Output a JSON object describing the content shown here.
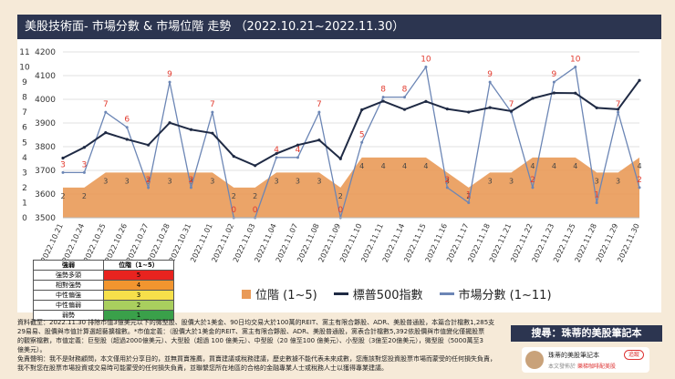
{
  "title": "美股技術面- 市場分數 & 市場位階 走勢 （2022.10.21~2022.11.30）",
  "chart_data": {
    "type": "line",
    "categories": [
      "2022.10.21",
      "2022.10.24",
      "2022.10.25",
      "2022.10.26",
      "2022.10.27",
      "2022.10.28",
      "2022.10.31",
      "2022.11.01",
      "2022.11.02",
      "2022.11.03",
      "2022.11.04",
      "2022.11.07",
      "2022.11.08",
      "2022.11.09",
      "2022.11.10",
      "2022.11.11",
      "2022.11.14",
      "2022.11.15",
      "2022.11.16",
      "2022.11.17",
      "2022.11.18",
      "2022.11.21",
      "2022.11.22",
      "2022.11.23",
      "2022.11.25",
      "2022.11.28",
      "2022.11.29",
      "2022.11.30"
    ],
    "left_axis": {
      "ticks": [
        3500,
        3600,
        3700,
        3800,
        3900,
        4000,
        4100,
        4200
      ],
      "ylim": [
        3500,
        4200
      ]
    },
    "right_axis": {
      "ticks": [
        0,
        1,
        2,
        3,
        4,
        5,
        6,
        7,
        8,
        9,
        10,
        11
      ],
      "ylim": [
        0,
        11
      ]
    },
    "series": [
      {
        "name": "位階 (1~5)",
        "kind": "area",
        "axis": "right",
        "color": "#e99a58",
        "values": [
          2,
          2,
          3,
          3,
          3,
          3,
          3,
          3,
          2,
          2,
          3,
          3,
          3,
          2,
          4,
          4,
          4,
          4,
          3,
          2,
          3,
          3,
          4,
          4,
          4,
          3,
          3,
          4
        ]
      },
      {
        "name": "標普500指數",
        "kind": "line",
        "axis": "left",
        "color": "#1f2a44",
        "values": [
          3752,
          3797,
          3859,
          3831,
          3807,
          3901,
          3872,
          3857,
          3759,
          3720,
          3771,
          3807,
          3828,
          3749,
          3956,
          3992,
          3957,
          3991,
          3959,
          3946,
          3965,
          3950,
          4004,
          4027,
          4026,
          3964,
          3958,
          4080
        ]
      },
      {
        "name": "市場分數 (1~11)",
        "kind": "line",
        "axis": "right",
        "color": "#6c86b5",
        "values": [
          3,
          3,
          7,
          6,
          2,
          9,
          2,
          7,
          0,
          0,
          4,
          4,
          7,
          0,
          5,
          8,
          8,
          10,
          2,
          1,
          9,
          7,
          2,
          9,
          10,
          1,
          7,
          2
        ]
      }
    ]
  },
  "score_legend": {
    "header": [
      "強弱",
      "位階（1~5）"
    ],
    "rows": [
      {
        "label": "強勢多頭",
        "value": "5",
        "color": "#e8231f"
      },
      {
        "label": "相對強勢",
        "value": "4",
        "color": "#f2952f"
      },
      {
        "label": "中性偏強",
        "value": "3",
        "color": "#f7e04a"
      },
      {
        "label": "中性偏弱",
        "value": "2",
        "color": "#a9cf5e"
      },
      {
        "label": "弱勢",
        "value": "1",
        "color": "#3aa04a"
      }
    ]
  },
  "notes": [
    "資料截至：2022.11.30 排除市值3億美元以下的微型股、股價大於1美金、90日均交易大於100萬的REIT、黨主有限合夥股、ADR、美股普通股，本篇合計檔數1,285支",
    "29易易、股價與市值計算選超藝擴檔數。*市值定義：（股價大於1美金的REIT、黨主有限合夥股、ADR、美股普通股，黨表合計檔數5,392依股價與市值變化僅擺股票",
    "的觀察檔數，市值定義：巨型股（超過2000億美元）、大型股（超過 100 億美元）、中型股（20 億至100 億美元）、小型股（3億至20億美元），微型股（5000萬至3",
    "億美元）。",
    "免責聲明：我不是財務顧問，本文僅用於分享目的，並無買賣推薦，買賣建議或稅務建議，歷史數據不能代表未來成數，您應該對您投資股票市場而蒙受的任何損失負責，",
    "我不對您在股票市場投資或交易時可能蒙受的任何損失負責，並聯繫您所在地區的合格的金融專業人士或稅務人士以獲得專業建議。"
  ],
  "search_label": "搜尋：珠蒂的美股筆記本",
  "follow": {
    "name": "珠蒂的美股筆記本",
    "button": "追蹤",
    "sub_prefix": "本文發佈於",
    "sub_link": "樂梯咖啡配美股"
  }
}
